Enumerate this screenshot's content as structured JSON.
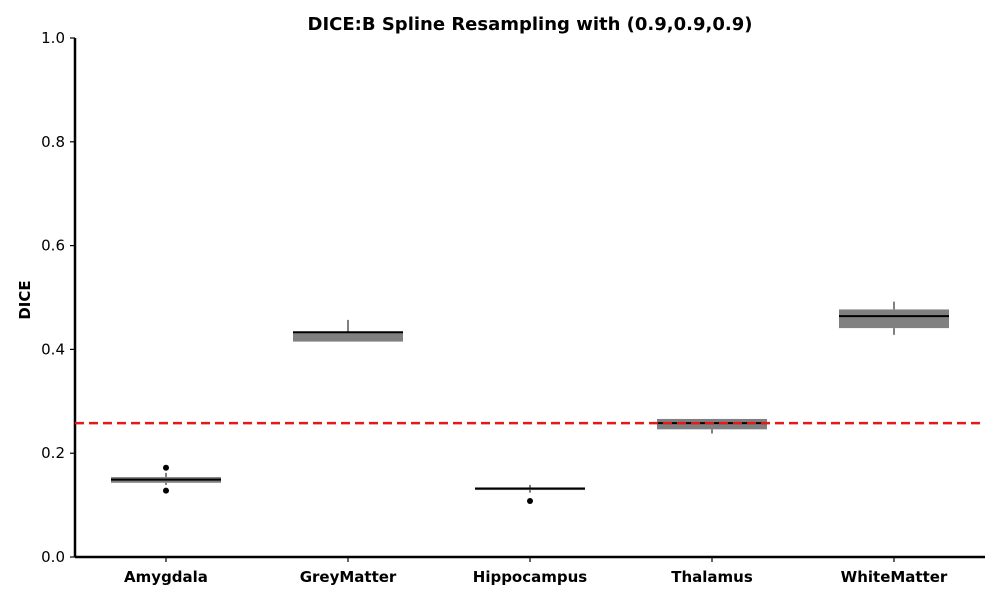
{
  "chart_data": {
    "type": "box",
    "title": "DICE:B Spline Resampling with (0.9,0.9,0.9)",
    "xlabel": "",
    "ylabel": "DICE",
    "ylim": [
      0.0,
      1.0
    ],
    "yticks": [
      "0.0",
      "0.2",
      "0.4",
      "0.6",
      "0.8",
      "1.0"
    ],
    "categories": [
      "Amygdala",
      "GreyMatter",
      "Hippocampus",
      "Thalamus",
      "WhiteMatter"
    ],
    "boxes": [
      {
        "q1": 0.143,
        "median": 0.149,
        "q3": 0.154,
        "whisker_low": 0.139,
        "whisker_high": 0.162,
        "outliers": [
          0.172,
          0.128
        ]
      },
      {
        "q1": 0.415,
        "median": 0.433,
        "q3": 0.433,
        "whisker_low": 0.415,
        "whisker_high": 0.457,
        "outliers": []
      },
      {
        "q1": 0.129,
        "median": 0.132,
        "q3": 0.134,
        "whisker_low": 0.124,
        "whisker_high": 0.139,
        "outliers": [
          0.108
        ]
      },
      {
        "q1": 0.246,
        "median": 0.258,
        "q3": 0.266,
        "whisker_low": 0.238,
        "whisker_high": 0.266,
        "outliers": []
      },
      {
        "q1": 0.441,
        "median": 0.464,
        "q3": 0.477,
        "whisker_low": 0.428,
        "whisker_high": 0.492,
        "outliers": []
      }
    ],
    "reference_line": {
      "y": 0.258,
      "style": "dashed",
      "color": "#e31a1c"
    },
    "box_color": "#808080",
    "median_color": "#000000",
    "grid": false,
    "legend": "none"
  }
}
